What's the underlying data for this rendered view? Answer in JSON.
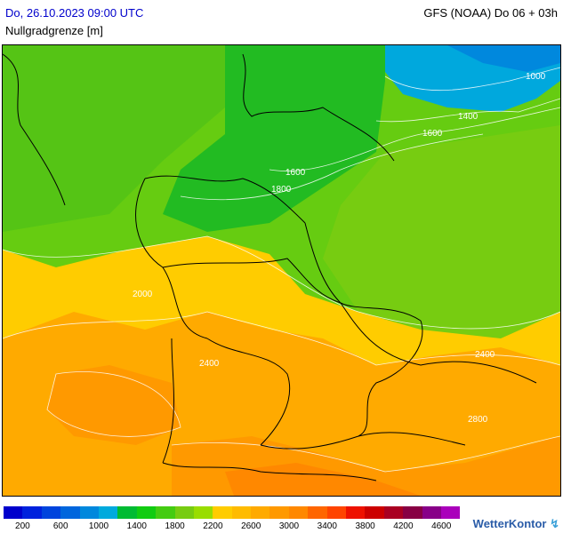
{
  "header": {
    "datetime": "Do, 26.10.2023 09:00 UTC",
    "model_run": "GFS (NOAA) Do 06 + 03h",
    "parameter": "Nullgradgrenze [m]"
  },
  "map": {
    "contour_labels": [
      "1000",
      "1400",
      "1600",
      "1600",
      "1800",
      "2000",
      "2400",
      "2400",
      "2800"
    ]
  },
  "legend": {
    "colors": [
      "#0000cc",
      "#0022dd",
      "#0044dd",
      "#0066dd",
      "#0088dd",
      "#00aadd",
      "#00bb33",
      "#11cc11",
      "#44cc11",
      "#77cc11",
      "#99dd00",
      "#ffcc00",
      "#ffbb00",
      "#ffaa00",
      "#ff9900",
      "#ff8800",
      "#ff6600",
      "#ff4400",
      "#ee1100",
      "#cc0000",
      "#aa0022",
      "#880044",
      "#880088",
      "#aa00bb"
    ],
    "tick_labels": [
      "200",
      "600",
      "1000",
      "1400",
      "1800",
      "2200",
      "2600",
      "3000",
      "3400",
      "3800",
      "4200",
      "4600"
    ]
  },
  "brand": {
    "name": "WetterKontor"
  }
}
